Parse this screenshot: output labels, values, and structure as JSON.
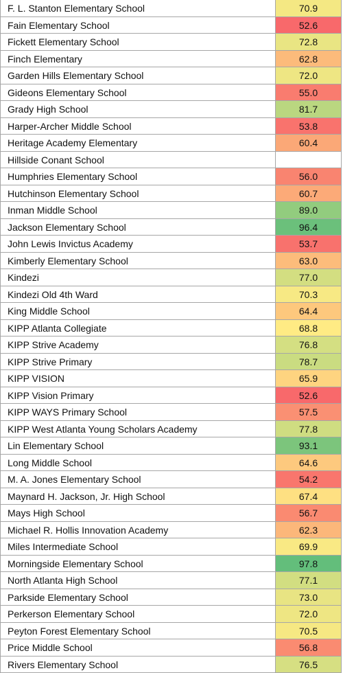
{
  "table": {
    "rows": [
      [
        "F. L. Stanton Elementary School",
        "70.9"
      ],
      [
        "Fain Elementary School",
        "52.6"
      ],
      [
        "Fickett Elementary School",
        "72.8"
      ],
      [
        "Finch Elementary",
        "62.8"
      ],
      [
        "Garden Hills Elementary School",
        "72.0"
      ],
      [
        "Gideons Elementary School",
        "55.0"
      ],
      [
        "Grady High School",
        "81.7"
      ],
      [
        "Harper-Archer Middle School",
        "53.8"
      ],
      [
        "Heritage Academy Elementary",
        "60.4"
      ],
      [
        "Hillside Conant School",
        null
      ],
      [
        "Humphries Elementary School",
        "56.0"
      ],
      [
        "Hutchinson Elementary School",
        "60.7"
      ],
      [
        "Inman Middle School",
        "89.0"
      ],
      [
        "Jackson Elementary School",
        "96.4"
      ],
      [
        "John Lewis Invictus Academy",
        "53.7"
      ],
      [
        "Kimberly Elementary School",
        "63.0"
      ],
      [
        "Kindezi",
        "77.0"
      ],
      [
        "Kindezi Old 4th Ward",
        "70.3"
      ],
      [
        "King Middle School",
        "64.4"
      ],
      [
        "KIPP Atlanta Collegiate",
        "68.8"
      ],
      [
        "KIPP Strive Academy",
        "76.8"
      ],
      [
        "KIPP Strive Primary",
        "78.7"
      ],
      [
        "KIPP VISION",
        "65.9"
      ],
      [
        "KIPP Vision Primary",
        "52.6"
      ],
      [
        "KIPP WAYS Primary School",
        "57.5"
      ],
      [
        "KIPP West Atlanta Young Scholars Academy",
        "77.8"
      ],
      [
        "Lin Elementary School",
        "93.1"
      ],
      [
        "Long Middle School",
        "64.6"
      ],
      [
        "M. A. Jones Elementary School",
        "54.2"
      ],
      [
        "Maynard H. Jackson, Jr. High School",
        "67.4"
      ],
      [
        "Mays High School",
        "56.7"
      ],
      [
        "Michael R. Hollis Innovation Academy",
        "62.3"
      ],
      [
        "Miles Intermediate School",
        "69.9"
      ],
      [
        "Morningside Elementary School",
        "97.8"
      ],
      [
        "North Atlanta High School",
        "77.1"
      ],
      [
        "Parkside Elementary School",
        "73.0"
      ],
      [
        "Perkerson Elementary School",
        "72.0"
      ],
      [
        "Peyton Forest Elementary School",
        "70.5"
      ],
      [
        "Price Middle School",
        "56.8"
      ],
      [
        "Rivers Elementary School",
        "76.5"
      ]
    ],
    "color_scale": {
      "low": "#f8696b",
      "mid": "#ffeb84",
      "high": "#63be7b"
    }
  }
}
